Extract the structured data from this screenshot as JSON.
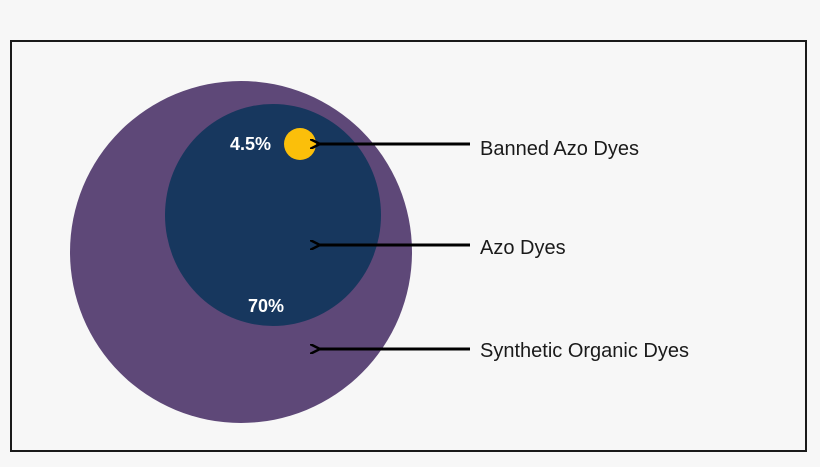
{
  "diagram": {
    "labels": {
      "banned": "Banned Azo Dyes",
      "azo": "Azo Dyes",
      "synthetic": "Synthetic Organic Dyes"
    },
    "percentages": {
      "banned": "4.5%",
      "azo": "70%"
    },
    "colors": {
      "synthetic": "#5e4878",
      "azo": "#17375e",
      "banned": "#fbbf0a",
      "arrow": "#000000"
    }
  }
}
